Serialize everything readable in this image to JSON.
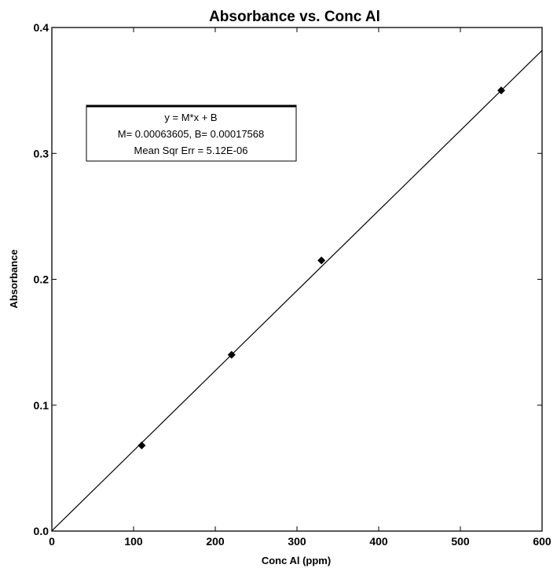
{
  "chart_data": {
    "type": "scatter",
    "title": "Absorbance vs. Conc Al",
    "xlabel": "Conc Al (ppm)",
    "ylabel": "Absorbance",
    "xlim": [
      0,
      600
    ],
    "ylim": [
      0,
      0.4
    ],
    "x_ticks": [
      "0",
      "100",
      "200",
      "300",
      "400",
      "500",
      "600"
    ],
    "y_ticks": [
      "0.0",
      "0.1",
      "0.2",
      "0.3",
      "0.4"
    ],
    "grid": false,
    "points": {
      "x": [
        110,
        220,
        330,
        550
      ],
      "y": [
        0.068,
        0.14,
        0.215,
        0.35
      ]
    },
    "fit": {
      "M": 0.00063605,
      "B": 0.00017568
    },
    "legend": {
      "placement": "top-left",
      "line1": "y = M*x + B",
      "line2": "M= 0.00063605,  B= 0.00017568",
      "line3": "Mean Sqr Err = 5.12E-06"
    },
    "colors": {
      "marks": "#000000",
      "background": "#ffffff"
    }
  }
}
